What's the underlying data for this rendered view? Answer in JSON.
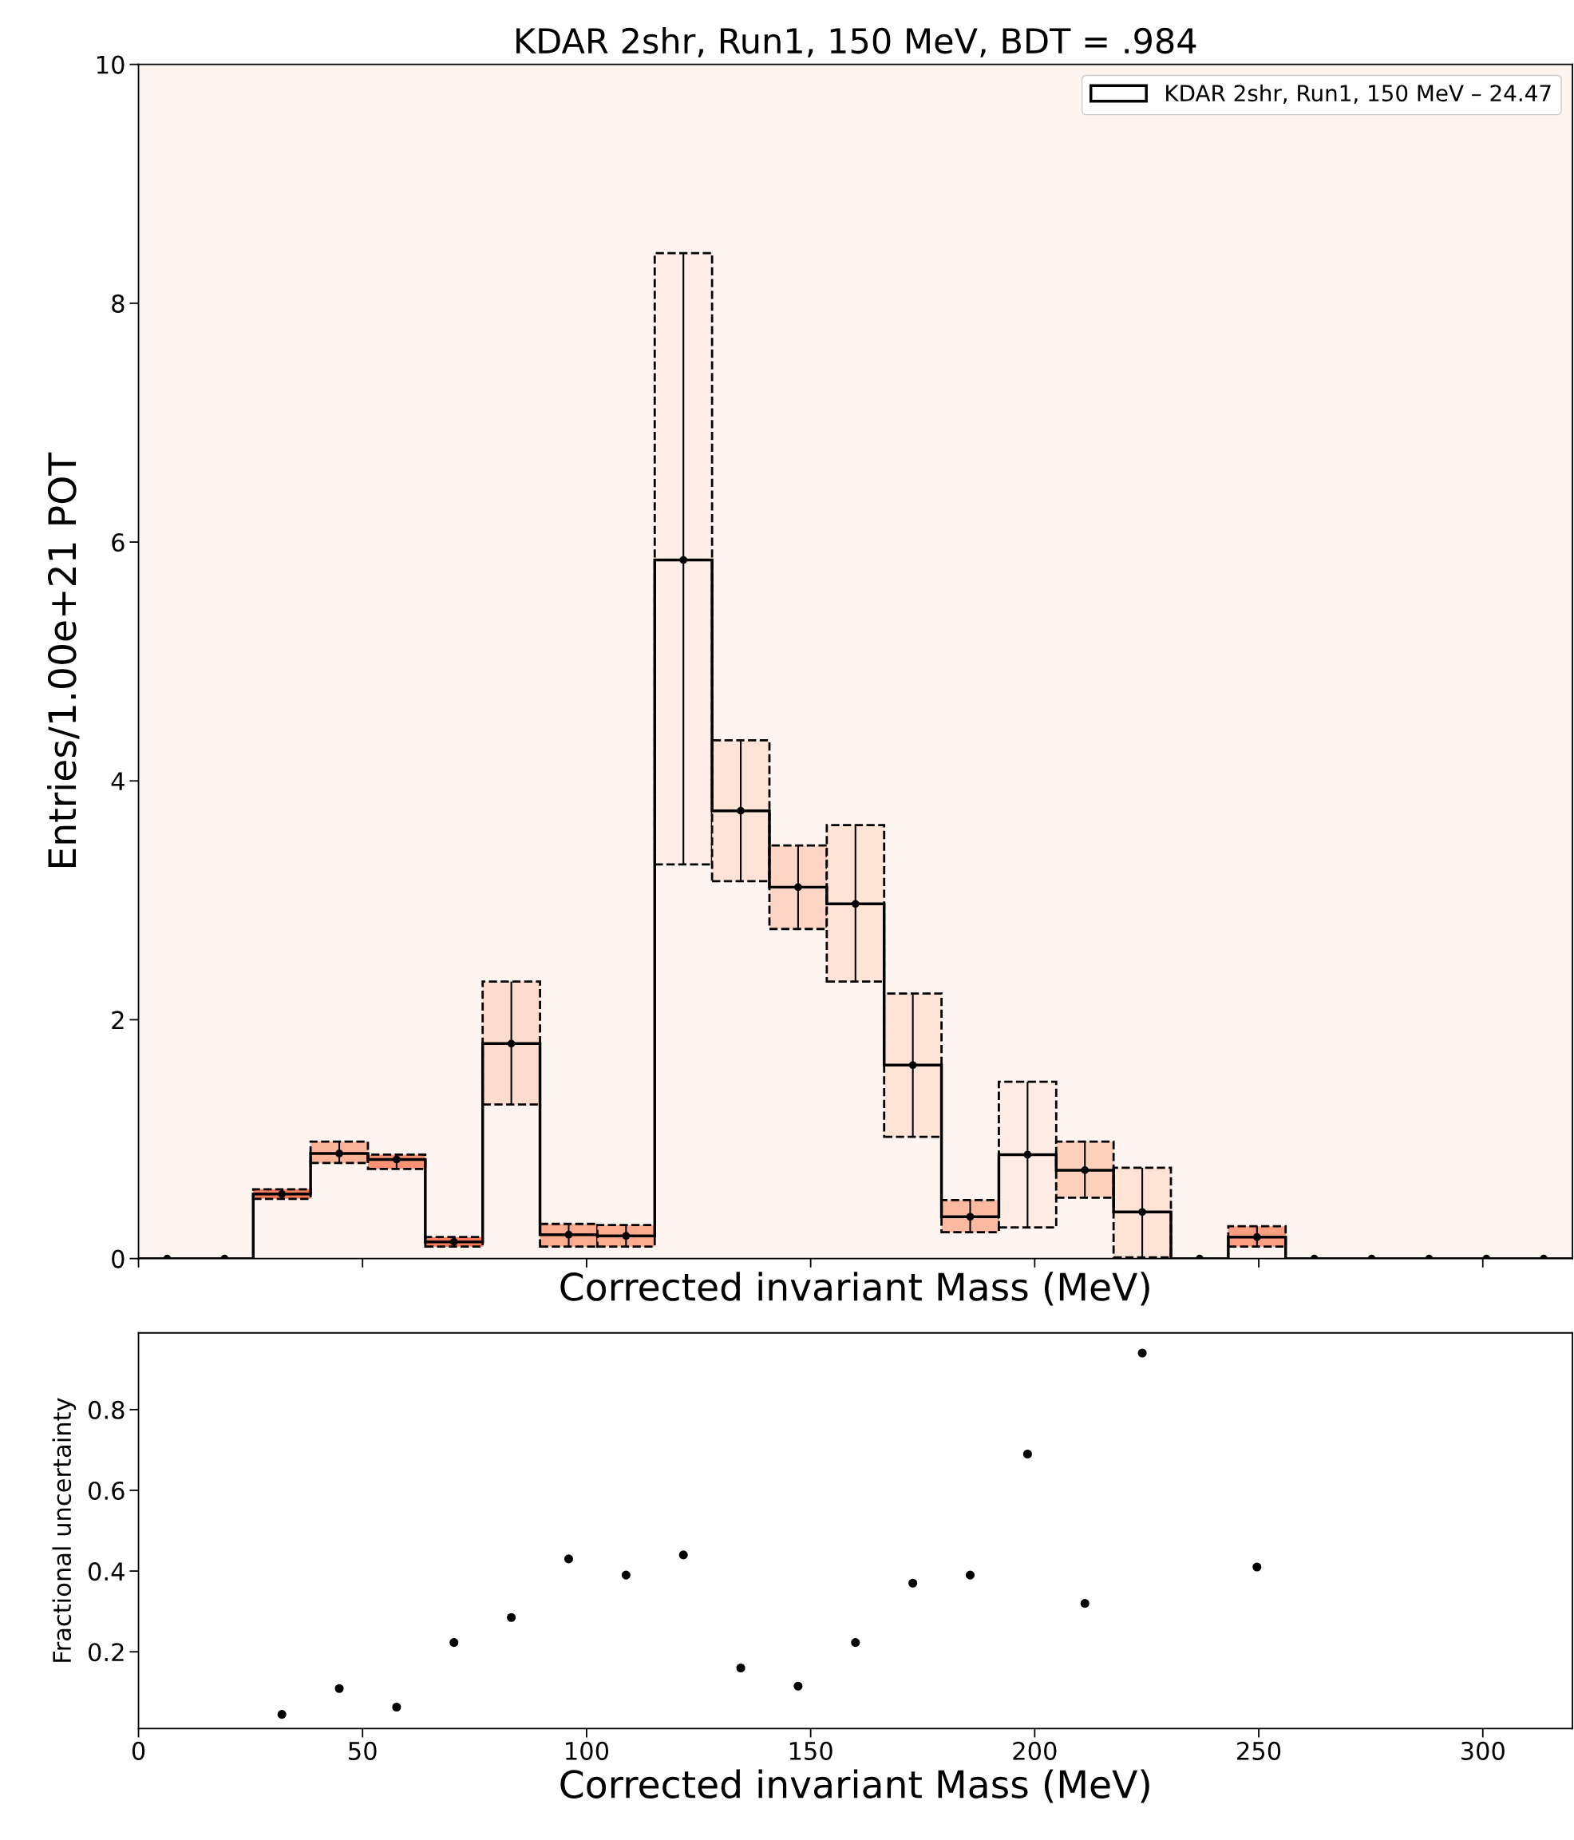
{
  "chart_data": [
    {
      "type": "histogram",
      "title": "KDAR 2shr, Run1, 150 MeV, BDT = .984",
      "xlabel": "Corrected invariant Mass (MeV)",
      "ylabel": "Entries/1.00e+21 POT",
      "bins": [
        0,
        12.8,
        25.6,
        38.4,
        51.2,
        64,
        76.8,
        89.6,
        102.4,
        115.2,
        128,
        140.8,
        153.6,
        166.4,
        179.2,
        192,
        204.8,
        217.6,
        230.4,
        243.2,
        256,
        268.8,
        281.6,
        294.4,
        307.2,
        320
      ],
      "series": [
        {
          "type": "bar",
          "line_style": "dashed",
          "x": [
            32,
            44.8,
            57.6,
            70.4,
            83.2,
            96,
            108.8,
            121.6,
            134.4,
            147.2,
            160,
            172.8,
            185.6,
            198.4,
            211.2,
            224,
            249.6
          ],
          "base": [
            0.5,
            0.8,
            0.75,
            0.1,
            1.29,
            0.1,
            0.1,
            3.3,
            3.16,
            2.76,
            2.32,
            1.02,
            0.22,
            0.26,
            0.51,
            0.01,
            0.1
          ],
          "values": [
            0.08,
            0.18,
            0.12,
            0.08,
            1.03,
            0.19,
            0.18,
            5.12,
            1.18,
            0.7,
            1.31,
            1.2,
            0.27,
            1.22,
            0.47,
            0.75,
            0.17
          ],
          "colors": [
            "#fb7a5a",
            "#fcb499",
            "#fc9474",
            "#fb7a5a",
            "#fedccd",
            "#fcab8f",
            "#fcab8f",
            "#ffeee7",
            "#fee3d6",
            "#fdd5c4",
            "#fee3d6",
            "#fee3d6",
            "#fcbba1",
            "#ffece4",
            "#fdd0bc",
            "#fee3d6",
            "#fc9e80"
          ]
        },
        {
          "type": "histogram",
          "name": "KDAR 2shr, Run1, 150 MeV – 24.47",
          "color": "#000000",
          "values": [
            0,
            0,
            0.54,
            0.88,
            0.83,
            0.14,
            1.8,
            0.2,
            0.19,
            5.85,
            3.75,
            3.11,
            2.97,
            1.62,
            0.35,
            0.87,
            0.74,
            0.39,
            0,
            0.18,
            0,
            0,
            0,
            0,
            0
          ]
        },
        {
          "type": "scatter",
          "color": "#000000",
          "marker": "circle",
          "x": [
            6.4,
            19.2,
            32,
            44.8,
            57.6,
            70.4,
            83.2,
            96,
            108.8,
            121.6,
            134.4,
            147.2,
            160,
            172.8,
            185.6,
            198.4,
            211.2,
            224,
            236.8,
            249.6,
            262.4,
            275.2,
            288,
            300.8,
            313.6
          ],
          "values": [
            0,
            0,
            0.54,
            0.88,
            0.83,
            0.14,
            1.8,
            0.2,
            0.19,
            5.85,
            3.75,
            3.11,
            2.97,
            1.62,
            0.35,
            0.87,
            0.74,
            0.39,
            0,
            0.18,
            0,
            0,
            0,
            0,
            0
          ],
          "errors": [
            null,
            null,
            [
              0.5,
              0.58
            ],
            [
              0.8,
              0.98
            ],
            [
              0.75,
              0.87
            ],
            [
              0.1,
              0.18
            ],
            [
              1.29,
              2.32
            ],
            [
              0.1,
              0.29
            ],
            [
              0.1,
              0.28
            ],
            [
              3.3,
              8.42
            ],
            [
              3.16,
              4.34
            ],
            [
              2.76,
              3.46
            ],
            [
              2.32,
              3.63
            ],
            [
              1.02,
              2.22
            ],
            [
              0.22,
              0.49
            ],
            [
              0.26,
              1.48
            ],
            [
              0.51,
              0.98
            ],
            [
              0.01,
              0.76
            ],
            null,
            [
              0.1,
              0.27
            ],
            null,
            null,
            null,
            null,
            null
          ]
        }
      ],
      "xlim": [
        0,
        320
      ],
      "xticks": [
        0,
        50,
        100,
        150,
        200,
        250,
        300
      ],
      "ylim": [
        0,
        10
      ],
      "yticks": [
        0,
        2,
        4,
        6,
        8,
        10
      ],
      "tick_labels": "y",
      "legend": "top right",
      "grid": false
    },
    {
      "type": "scatter",
      "xlabel": "Corrected invariant Mass (MeV)",
      "ylabel": "Fractional uncertainty",
      "marker": "circle",
      "color": "#000000",
      "x": [
        32,
        44.8,
        57.6,
        70.4,
        83.2,
        96,
        108.8,
        121.6,
        134.4,
        147.2,
        160,
        172.8,
        185.6,
        198.4,
        211.2,
        224,
        249.6
      ],
      "values": [
        0.045,
        0.109,
        0.063,
        0.223,
        0.285,
        0.43,
        0.39,
        0.44,
        0.16,
        0.115,
        0.223,
        0.37,
        0.39,
        0.69,
        0.32,
        0.94,
        0.41
      ],
      "xlim": [
        0,
        320
      ],
      "xticks": [
        0,
        50,
        100,
        150,
        200,
        250,
        300
      ],
      "ylim": [
        0.01,
        0.99
      ],
      "yticks": [
        0.2,
        0.4,
        0.6,
        0.8
      ],
      "grid": false,
      "legend": false
    }
  ]
}
